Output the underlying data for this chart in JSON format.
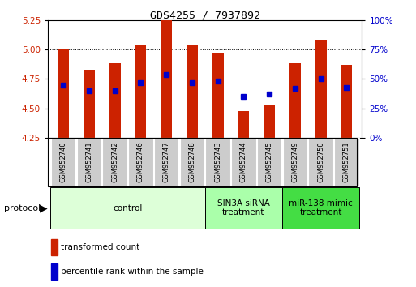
{
  "title": "GDS4255 / 7937892",
  "samples": [
    "GSM952740",
    "GSM952741",
    "GSM952742",
    "GSM952746",
    "GSM952747",
    "GSM952748",
    "GSM952743",
    "GSM952744",
    "GSM952745",
    "GSM952749",
    "GSM952750",
    "GSM952751"
  ],
  "red_values": [
    5.0,
    4.83,
    4.88,
    5.04,
    5.25,
    5.04,
    4.97,
    4.48,
    4.53,
    4.88,
    5.08,
    4.87
  ],
  "blue_values": [
    4.7,
    4.65,
    4.65,
    4.72,
    4.79,
    4.72,
    4.73,
    4.6,
    4.62,
    4.67,
    4.75,
    4.68
  ],
  "ylim": [
    4.25,
    5.25
  ],
  "yticks_left": [
    4.25,
    4.5,
    4.75,
    5.0,
    5.25
  ],
  "yticks_right_vals": [
    0,
    25,
    50,
    75,
    100
  ],
  "yticks_right_pos": [
    4.25,
    4.5,
    4.75,
    5.0,
    5.25
  ],
  "red_color": "#CC2200",
  "blue_color": "#0000CC",
  "bar_width": 0.45,
  "groups": [
    {
      "label": "control",
      "start": 0,
      "end": 6
    },
    {
      "label": "SIN3A siRNA\ntreatment",
      "start": 6,
      "end": 9
    },
    {
      "label": "miR-138 mimic\ntreatment",
      "start": 9,
      "end": 12
    }
  ],
  "group_colors": [
    "#DDFFD8",
    "#AAFFAA",
    "#44DD44"
  ],
  "legend_red": "transformed count",
  "legend_blue": "percentile rank within the sample",
  "protocol_label": "protocol",
  "bar_base": 4.25
}
